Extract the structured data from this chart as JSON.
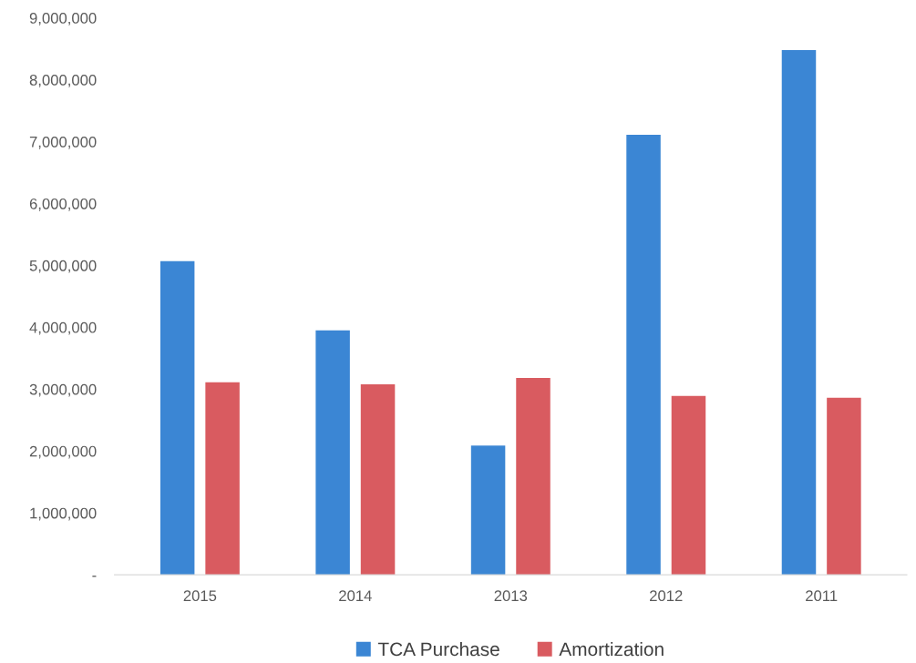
{
  "chart_data": {
    "type": "bar",
    "categories": [
      "2015",
      "2014",
      "2013",
      "2012",
      "2011"
    ],
    "series": [
      {
        "name": "TCA Purchase",
        "color": "#3b86d4",
        "values": [
          5070000,
          3950000,
          2090000,
          7110000,
          8480000
        ]
      },
      {
        "name": "Amortization",
        "color": "#d95b60",
        "values": [
          3110000,
          3080000,
          3180000,
          2890000,
          2860000
        ]
      }
    ],
    "ylim": [
      0,
      9000000
    ],
    "yticks": [
      {
        "value": 0,
        "label": "-"
      },
      {
        "value": 1000000,
        "label": "1,000,000"
      },
      {
        "value": 2000000,
        "label": "2,000,000"
      },
      {
        "value": 3000000,
        "label": "3,000,000"
      },
      {
        "value": 4000000,
        "label": "4,000,000"
      },
      {
        "value": 5000000,
        "label": "5,000,000"
      },
      {
        "value": 6000000,
        "label": "6,000,000"
      },
      {
        "value": 7000000,
        "label": "7,000,000"
      },
      {
        "value": 8000000,
        "label": "8,000,000"
      },
      {
        "value": 9000000,
        "label": "9,000,000"
      }
    ],
    "grid": false,
    "legend": "bottom"
  }
}
